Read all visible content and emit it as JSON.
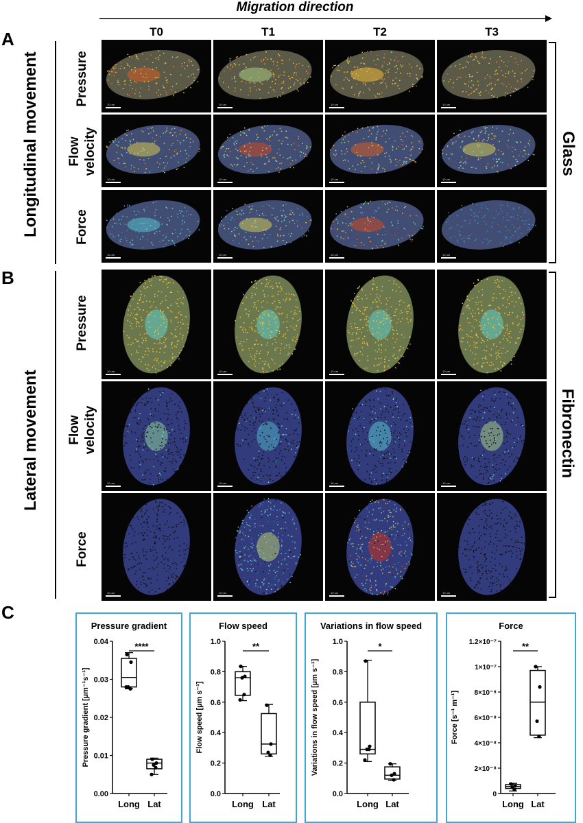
{
  "header": {
    "migration_direction": "Migration direction"
  },
  "panels": {
    "a": "A",
    "b": "B",
    "c": "C"
  },
  "timepoints": [
    "T0",
    "T1",
    "T2",
    "T3"
  ],
  "section_a": {
    "movement": "Longitudinal movement",
    "substrate": "Glass"
  },
  "section_b": {
    "movement": "Lateral movement",
    "substrate": "Fibronectin"
  },
  "row_labels": {
    "pressure": "Pressure",
    "flow_line1": "Flow",
    "flow_line2": "velocity",
    "force": "Force"
  },
  "scale_bar_text": "10 um",
  "chart_data": [
    {
      "type": "box",
      "title": "Pressure gradient",
      "ylabel": "Pressure gradient [µm⁻¹s⁻¹]",
      "categories": [
        "Long",
        "Lat"
      ],
      "ylim": [
        0,
        0.04
      ],
      "yticks": [
        "0.00",
        "0.01",
        "0.02",
        "0.03",
        "0.04"
      ],
      "yticks_values": [
        0,
        0.01,
        0.02,
        0.03,
        0.04
      ],
      "significance": "****",
      "boxes": [
        {
          "min": 0.0275,
          "q1": 0.028,
          "median": 0.0305,
          "q3": 0.0355,
          "max": 0.037,
          "points": [
            0.0365,
            0.0345,
            0.028,
            0.0275,
            0.028
          ]
        },
        {
          "min": 0.005,
          "q1": 0.0065,
          "median": 0.008,
          "q3": 0.009,
          "max": 0.0093,
          "points": [
            0.009,
            0.008,
            0.0075,
            0.0068,
            0.005
          ]
        }
      ]
    },
    {
      "type": "box",
      "title": "Flow speed",
      "ylabel": "Flow speed [µm s⁻¹]",
      "categories": [
        "Long",
        "Lat"
      ],
      "ylim": [
        0,
        1.0
      ],
      "yticks": [
        "0.0",
        "0.2",
        "0.4",
        "0.6",
        "0.8",
        "1.0"
      ],
      "yticks_values": [
        0,
        0.2,
        0.4,
        0.6,
        0.8,
        1.0
      ],
      "significance": "**",
      "boxes": [
        {
          "min": 0.61,
          "q1": 0.645,
          "median": 0.76,
          "q3": 0.8,
          "max": 0.835,
          "points": [
            0.835,
            0.77,
            0.76,
            0.65,
            0.615
          ]
        },
        {
          "min": 0.245,
          "q1": 0.26,
          "median": 0.325,
          "q3": 0.525,
          "max": 0.585,
          "points": [
            0.58,
            0.325,
            0.27,
            0.25
          ]
        }
      ]
    },
    {
      "type": "box",
      "title": "Variations in flow speed",
      "ylabel": "Variations in flow speed [µm s⁻¹]",
      "categories": [
        "Long",
        "Lat"
      ],
      "ylim": [
        0,
        1.0
      ],
      "yticks": [
        "0.0",
        "0.2",
        "0.4",
        "0.6",
        "0.8",
        "1.0"
      ],
      "yticks_values": [
        0,
        0.2,
        0.4,
        0.6,
        0.8,
        1.0
      ],
      "significance": "*",
      "boxes": [
        {
          "min": 0.21,
          "q1": 0.26,
          "median": 0.29,
          "q3": 0.6,
          "max": 0.875,
          "points": [
            0.87,
            0.31,
            0.29,
            0.29,
            0.22
          ]
        },
        {
          "min": 0.085,
          "q1": 0.095,
          "median": 0.12,
          "q3": 0.175,
          "max": 0.195,
          "points": [
            0.195,
            0.13,
            0.12,
            0.09
          ]
        }
      ]
    },
    {
      "type": "box",
      "title": "Force",
      "ylabel": "Force [s⁻¹ m⁻¹]",
      "categories": [
        "Long",
        "Lat"
      ],
      "ylim": [
        0,
        1.2e-07
      ],
      "yticks": [
        "0",
        "2×10⁻⁸",
        "4×10⁻⁸",
        "6×10⁻⁸",
        "8×10⁻⁸",
        "1×10⁻⁷",
        "1.2×10⁻⁷"
      ],
      "yticks_values": [
        0,
        2e-08,
        4e-08,
        6e-08,
        8e-08,
        1e-07,
        1.2e-07
      ],
      "significance": "**",
      "boxes": [
        {
          "min": 2e-09,
          "q1": 4e-09,
          "median": 5.5e-09,
          "q3": 7e-09,
          "max": 8e-09,
          "points": [
            7.5e-09,
            6e-09,
            5e-09,
            3e-09
          ]
        },
        {
          "min": 4.4e-08,
          "q1": 4.6e-08,
          "median": 7.2e-08,
          "q3": 9.7e-08,
          "max": 1e-07,
          "points": [
            1e-07,
            8.4e-08,
            5.7e-08,
            4.5e-08
          ]
        }
      ]
    }
  ],
  "colors": {
    "box_border": "#3aa8d8",
    "hot": "#c8321e",
    "warm": "#f0c83a",
    "cool": "#5ad2d2",
    "cold": "#3240b4"
  }
}
